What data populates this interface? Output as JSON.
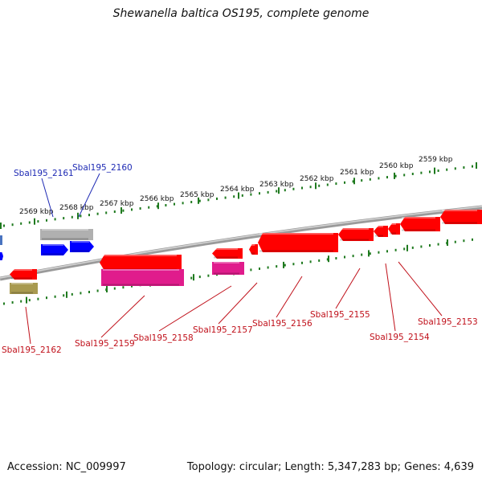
{
  "title": "Shewanella baltica OS195, complete genome",
  "accession": "Accession: NC_009997",
  "topology": "Topology: circular; Length: 5,347,283 bp; Genes: 4,639",
  "kbp_labels": [
    "2569 kbp",
    "2568 kbp",
    "2567 kbp",
    "2566 kbp",
    "2565 kbp",
    "2564 kbp",
    "2563 kbp",
    "2562 kbp",
    "2561 kbp",
    "2560 kbp",
    "2559 kbp"
  ],
  "gene_labels_top": [
    "Sbal195_2161",
    "Sbal195_2160"
  ],
  "gene_labels_bottom": [
    "Sbal195_2162",
    "Sbal195_2159",
    "Sbal195_2158",
    "Sbal195_2157",
    "Sbal195_2156",
    "Sbal195_2155",
    "Sbal195_2154",
    "Sbal195_2153"
  ],
  "colors": {
    "backbone": "#808080",
    "tick": "#1f7a1f",
    "cds_red": "#ff0000",
    "cds_magenta": "#e01c8c",
    "cds_blue": "#0000ff",
    "gene_grey": "#b0b0b0",
    "misc_olive": "#a89a50",
    "label_blue": "#1e2ab4",
    "label_red": "#c0101a"
  }
}
